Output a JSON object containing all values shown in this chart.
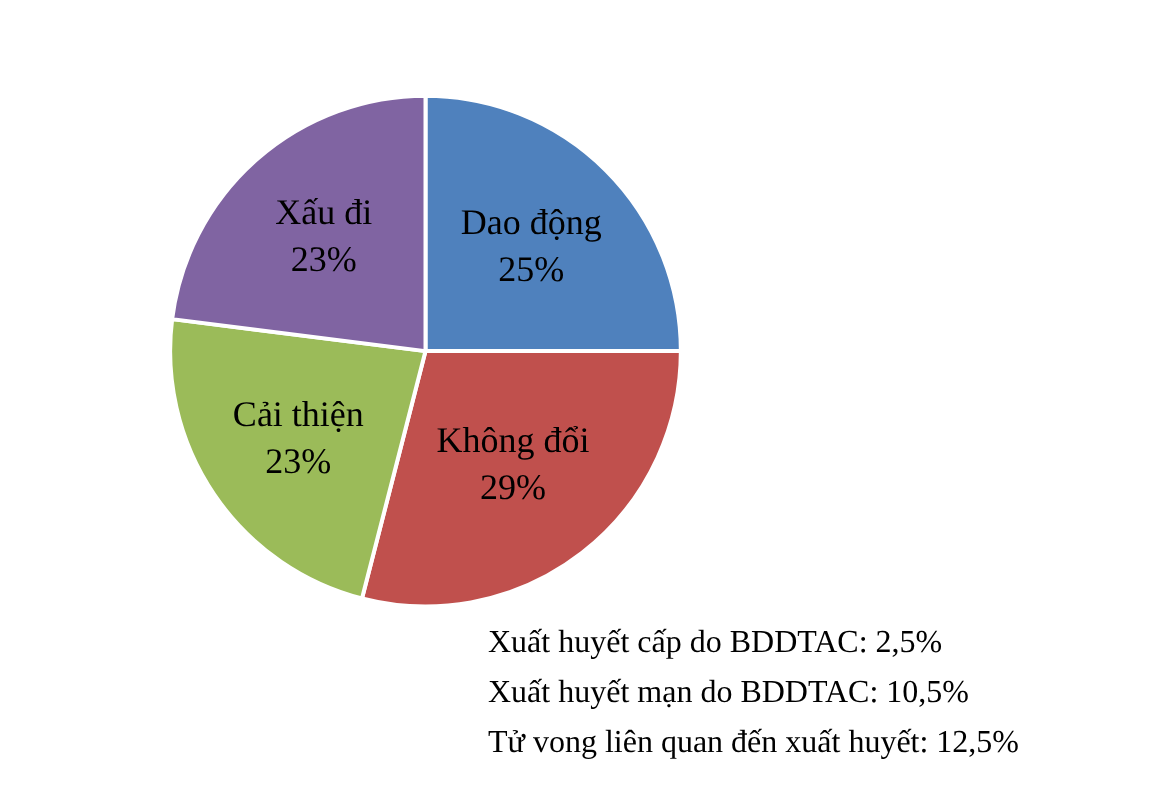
{
  "chart_data": {
    "type": "pie",
    "categories": [
      "Dao động",
      "Không đổi",
      "Cải thiện",
      "Xấu đi"
    ],
    "values": [
      25,
      29,
      23,
      23
    ],
    "value_labels": [
      "25%",
      "29%",
      "23%",
      "23%"
    ],
    "colors": [
      "#4f81bd",
      "#c0504d",
      "#9bbb59",
      "#8064a2"
    ],
    "legend": false,
    "annotations": [
      "Xuất huyết cấp do BDDTAC: 2,5%",
      "Xuất huyết mạn do BDDTAC: 10,5%",
      "Tử vong liên quan đến xuất huyết: 12,5%"
    ]
  }
}
